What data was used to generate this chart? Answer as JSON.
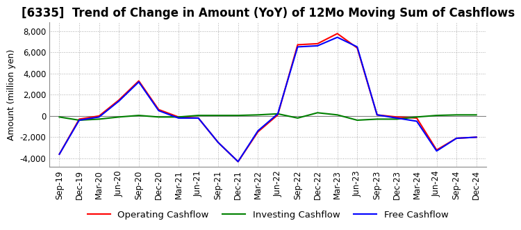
{
  "title": "[6335]  Trend of Change in Amount (YoY) of 12Mo Moving Sum of Cashflows",
  "ylabel": "Amount (million yen)",
  "ylim": [
    -4800,
    8800
  ],
  "yticks": [
    -4000,
    -2000,
    0,
    2000,
    4000,
    6000,
    8000
  ],
  "x_labels": [
    "Sep-19",
    "Dec-19",
    "Mar-20",
    "Jun-20",
    "Sep-20",
    "Dec-20",
    "Mar-21",
    "Jun-21",
    "Sep-21",
    "Dec-21",
    "Mar-22",
    "Jun-22",
    "Sep-22",
    "Dec-22",
    "Mar-23",
    "Jun-23",
    "Sep-23",
    "Dec-23",
    "Mar-24",
    "Jun-24",
    "Sep-24",
    "Dec-24"
  ],
  "operating_cashflow": [
    -3600,
    -300,
    0,
    1500,
    3300,
    600,
    -100,
    -200,
    -2500,
    -4300,
    -1500,
    100,
    6700,
    6800,
    7750,
    6400,
    100,
    -100,
    -200,
    -3200,
    -2100,
    -2000
  ],
  "investing_cashflow": [
    -100,
    -400,
    -300,
    -100,
    50,
    -100,
    -100,
    50,
    50,
    50,
    100,
    200,
    -200,
    300,
    100,
    -400,
    -300,
    -300,
    -100,
    50,
    100,
    100
  ],
  "free_cashflow": [
    -3600,
    -400,
    -100,
    1400,
    3200,
    500,
    -200,
    -200,
    -2500,
    -4300,
    -1400,
    200,
    6500,
    6600,
    7400,
    6500,
    100,
    -200,
    -500,
    -3300,
    -2100,
    -2000
  ],
  "operating_color": "#ff0000",
  "investing_color": "#008000",
  "free_color": "#0000ff",
  "background_color": "#ffffff",
  "grid_color": "#aaaaaa",
  "title_fontsize": 12,
  "axis_fontsize": 9,
  "tick_fontsize": 8.5
}
